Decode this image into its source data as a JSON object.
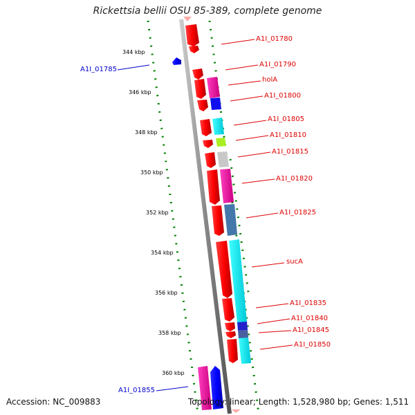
{
  "header": {
    "title": "Rickettsia bellii OSU 85-389, complete genome"
  },
  "footer": {
    "accession": "Accession: NC_009883",
    "stats": "Topology: linear; Length: 1,528,980 bp; Genes: 1,511"
  },
  "ticks": [
    {
      "label": "344 kbp",
      "kbp": 344
    },
    {
      "label": "346 kbp",
      "kbp": 346
    },
    {
      "label": "348 kbp",
      "kbp": 348
    },
    {
      "label": "350 kbp",
      "kbp": 350
    },
    {
      "label": "352 kbp",
      "kbp": 352
    },
    {
      "label": "354 kbp",
      "kbp": 354
    },
    {
      "label": "356 kbp",
      "kbp": 356
    },
    {
      "label": "358 kbp",
      "kbp": 358
    },
    {
      "label": "360 kbp",
      "kbp": 360
    }
  ],
  "colors": {
    "forward_strand": "#ff0000",
    "reverse_strand": "#0000ff",
    "backbone": "#888888",
    "tick_dots": "#008000",
    "label_right": "#dd0000",
    "label_left": "#0000cc"
  },
  "genes": [
    {
      "label": "A1I_01780",
      "side": "right",
      "start_kbp": 343.4,
      "end_kbp": 344.1
    },
    {
      "label": "A1I_01785",
      "side": "left",
      "start_kbp": 344.5,
      "end_kbp": 344.8
    },
    {
      "label": "A1I_01790",
      "side": "right",
      "start_kbp": 344.9,
      "end_kbp": 345.3
    },
    {
      "label": "holA",
      "side": "right",
      "start_kbp": 345.4,
      "end_kbp": 346.3
    },
    {
      "label": "A1I_01800",
      "side": "right",
      "start_kbp": 346.4,
      "end_kbp": 346.9
    },
    {
      "label": "A1I_01805",
      "side": "right",
      "start_kbp": 347.3,
      "end_kbp": 348.1
    },
    {
      "label": "A1I_01810",
      "side": "right",
      "start_kbp": 348.3,
      "end_kbp": 348.7
    },
    {
      "label": "A1I_01815",
      "side": "right",
      "start_kbp": 348.9,
      "end_kbp": 349.7
    },
    {
      "label": "A1I_01820",
      "side": "right",
      "start_kbp": 349.9,
      "end_kbp": 351.6
    },
    {
      "label": "A1I_01825",
      "side": "right",
      "start_kbp": 351.7,
      "end_kbp": 353.2
    },
    {
      "label": "sucA",
      "side": "right",
      "start_kbp": 353.5,
      "end_kbp": 356.3
    },
    {
      "label": "A1I_01835",
      "side": "right",
      "start_kbp": 356.4,
      "end_kbp": 357.6
    },
    {
      "label": "A1I_01840",
      "side": "right",
      "start_kbp": 357.7,
      "end_kbp": 358.0
    },
    {
      "label": "A1I_01845",
      "side": "right",
      "start_kbp": 358.1,
      "end_kbp": 358.4
    },
    {
      "label": "A1I_01850",
      "side": "right",
      "start_kbp": 358.5,
      "end_kbp": 359.8
    },
    {
      "label": "A1I_01855",
      "side": "left",
      "start_kbp": 360.0,
      "end_kbp": 362.0
    }
  ]
}
